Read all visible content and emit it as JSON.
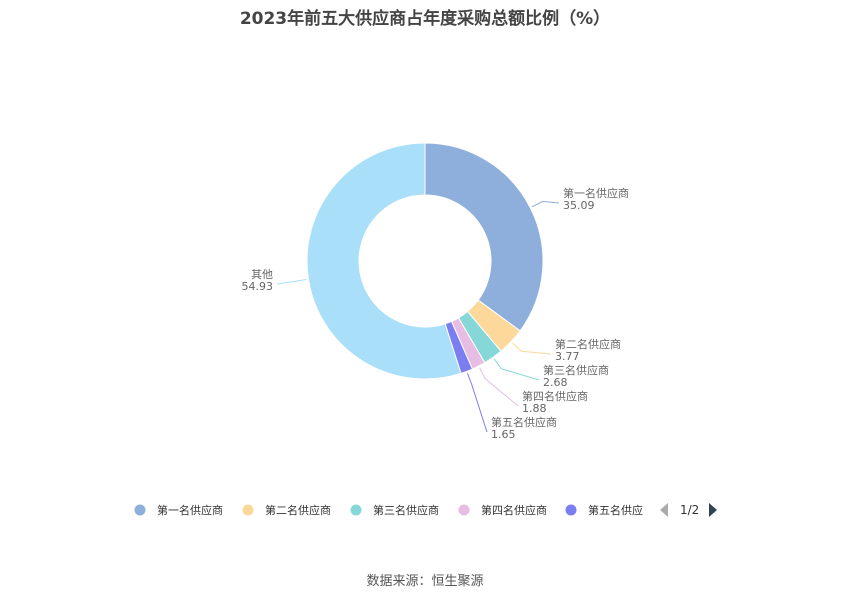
{
  "chart_data": {
    "type": "pie",
    "title": "2023年前五大供应商占年度采购总额比例（%）",
    "slices": [
      {
        "name": "第一名供应商",
        "value": 35.09,
        "color": "#8eaedb"
      },
      {
        "name": "第二名供应商",
        "value": 3.77,
        "color": "#fcd99a"
      },
      {
        "name": "第三名供应商",
        "value": 2.68,
        "color": "#86d8d8"
      },
      {
        "name": "第四名供应商",
        "value": 1.88,
        "color": "#e8bde3"
      },
      {
        "name": "第五名供应商",
        "value": 1.65,
        "color": "#7b7ef0"
      },
      {
        "name": "其他",
        "value": 54.93,
        "color": "#aadff9"
      }
    ],
    "legend": {
      "placement": "bottom",
      "visible_items": [
        "第一名供应商",
        "第二名供应商",
        "第三名供应商",
        "第四名供应商",
        "第五名供应商"
      ],
      "truncated_last_item": "第五名供应",
      "page": "1/2"
    }
  },
  "source": "数据来源：恒生聚源"
}
